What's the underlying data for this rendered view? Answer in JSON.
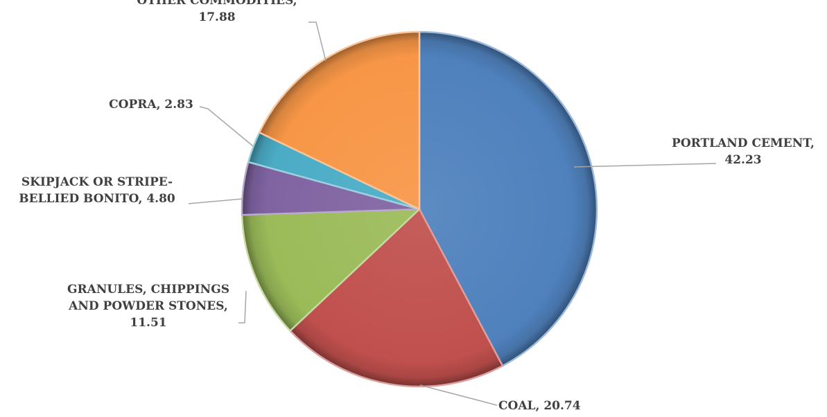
{
  "chart_data": {
    "type": "pie",
    "title": "",
    "start_angle_deg": 0,
    "direction": "clockwise",
    "slices": [
      {
        "label": "PORTLAND CEMENT",
        "value": 42.23,
        "display": "42.23",
        "color": "#4F81BD"
      },
      {
        "label": "COAL",
        "value": 20.74,
        "display": "20.74",
        "color": "#C0504D"
      },
      {
        "label": "GRANULES, CHIPPINGS AND POWDER STONES",
        "value": 11.51,
        "display": "11.51",
        "color": "#9BBB59"
      },
      {
        "label": "SKIPJACK OR STRIPE-BELLIED BONITO",
        "value": 4.8,
        "display": "4.80",
        "color": "#8064A2"
      },
      {
        "label": "COPRA",
        "value": 2.83,
        "display": "2.83",
        "color": "#4BACC6"
      },
      {
        "label": "OTHER COMMODITIES",
        "value": 17.88,
        "display": "17.88",
        "color": "#F79646"
      }
    ]
  }
}
